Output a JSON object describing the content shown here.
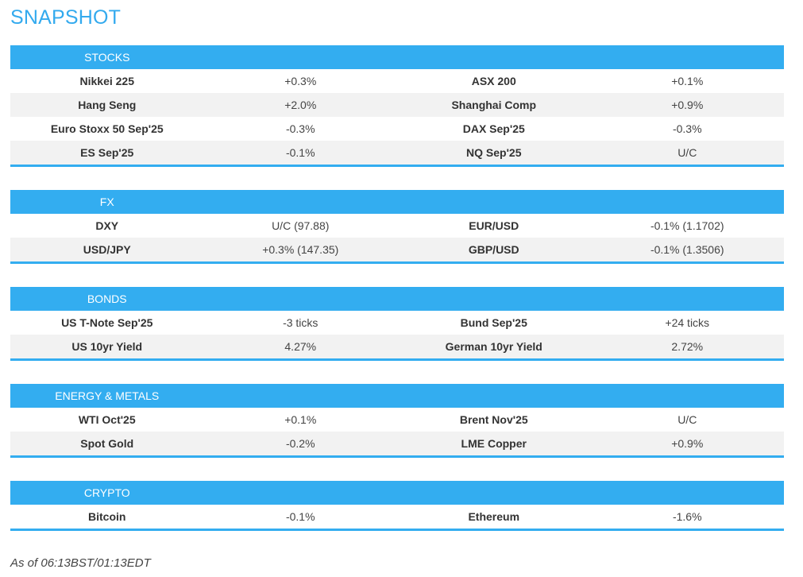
{
  "title": "SNAPSHOT",
  "sections": [
    {
      "label": "STOCKS",
      "rows": [
        [
          "Nikkei 225",
          "+0.3%",
          "ASX 200",
          "+0.1%"
        ],
        [
          "Hang Seng",
          "+2.0%",
          "Shanghai Comp",
          "+0.9%"
        ],
        [
          "Euro Stoxx 50 Sep'25",
          "-0.3%",
          "DAX Sep'25",
          "-0.3%"
        ],
        [
          "ES Sep'25",
          "-0.1%",
          "NQ Sep'25",
          "U/C"
        ]
      ]
    },
    {
      "label": "FX",
      "rows": [
        [
          "DXY",
          "U/C (97.88)",
          "EUR/USD",
          "-0.1% (1.1702)"
        ],
        [
          "USD/JPY",
          "+0.3% (147.35)",
          "GBP/USD",
          "-0.1% (1.3506)"
        ]
      ]
    },
    {
      "label": "BONDS",
      "rows": [
        [
          "US T-Note Sep'25",
          "-3 ticks",
          "Bund Sep'25",
          "+24 ticks"
        ],
        [
          "US 10yr Yield",
          "4.27%",
          "German 10yr Yield",
          "2.72%"
        ]
      ]
    },
    {
      "label": "ENERGY & METALS",
      "rows": [
        [
          "WTI Oct'25",
          "+0.1%",
          "Brent Nov'25",
          "U/C"
        ],
        [
          "Spot Gold",
          "-0.2%",
          "LME Copper",
          "+0.9%"
        ]
      ]
    },
    {
      "label": "CRYPTO",
      "rows": [
        [
          "Bitcoin",
          "-0.1%",
          "Ethereum",
          "-1.6%"
        ]
      ]
    }
  ],
  "footer": "As of 06:13BST/01:13EDT",
  "colors": {
    "accent": "#33adf0",
    "title": "#33aaee",
    "stripe": "#f2f2f2"
  }
}
